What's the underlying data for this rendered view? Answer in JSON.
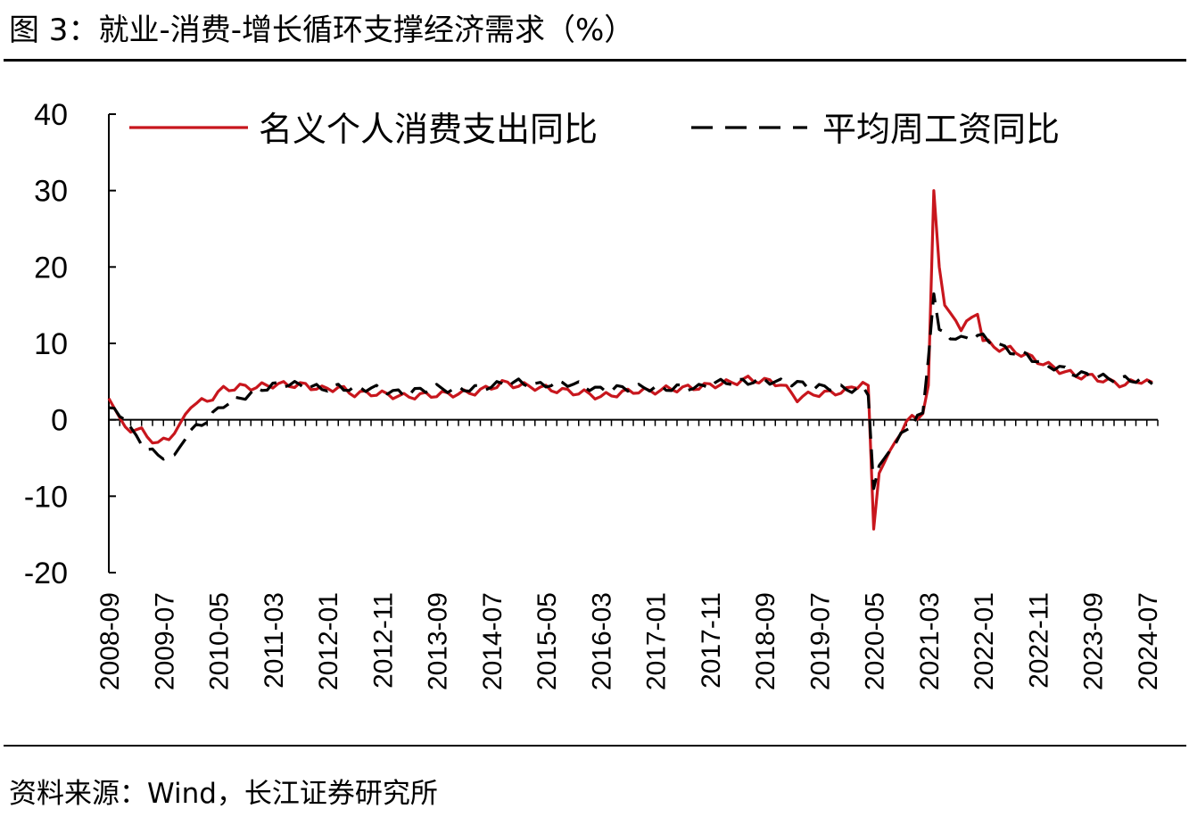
{
  "figure": {
    "title": "图 3：就业-消费-增长循环支撑经济需求（%）",
    "source": "资料来源：Wind，长江证券研究所"
  },
  "chart_data": {
    "type": "line",
    "ylim": [
      -20,
      40
    ],
    "yticks": [
      40,
      30,
      20,
      10,
      0,
      -10,
      -20
    ],
    "xlim": [
      "2008-09",
      "2024-09"
    ],
    "xticks": [
      "2008-09",
      "2009-07",
      "2010-05",
      "2011-03",
      "2012-01",
      "2012-11",
      "2013-09",
      "2014-07",
      "2015-05",
      "2016-03",
      "2017-01",
      "2017-11",
      "2018-09",
      "2019-07",
      "2020-05",
      "2021-03",
      "2022-01",
      "2022-11",
      "2023-09",
      "2024-07"
    ],
    "legend_position": "top",
    "grid": false,
    "series": [
      {
        "name": "名义个人消费支出同比",
        "color": "#c8161d",
        "style": "solid",
        "points": [
          [
            "2008-09",
            2.8
          ],
          [
            "2008-12",
            -1.0
          ],
          [
            "2009-03",
            -1.5
          ],
          [
            "2009-06",
            -3.2
          ],
          [
            "2009-09",
            -1.8
          ],
          [
            "2009-12",
            2.0
          ],
          [
            "2010-03",
            2.5
          ],
          [
            "2010-06",
            4.0
          ],
          [
            "2010-09",
            4.3
          ],
          [
            "2010-12",
            4.3
          ],
          [
            "2011-03",
            4.6
          ],
          [
            "2011-06",
            4.6
          ],
          [
            "2011-09",
            4.5
          ],
          [
            "2011-12",
            4.0
          ],
          [
            "2012-03",
            4.2
          ],
          [
            "2012-06",
            3.4
          ],
          [
            "2012-09",
            3.5
          ],
          [
            "2012-12",
            3.3
          ],
          [
            "2013-03",
            3.0
          ],
          [
            "2013-06",
            3.2
          ],
          [
            "2013-09",
            3.3
          ],
          [
            "2013-12",
            3.4
          ],
          [
            "2014-03",
            3.5
          ],
          [
            "2014-06",
            4.0
          ],
          [
            "2014-09",
            4.8
          ],
          [
            "2014-12",
            4.5
          ],
          [
            "2015-03",
            4.3
          ],
          [
            "2015-06",
            4.0
          ],
          [
            "2015-09",
            3.7
          ],
          [
            "2015-12",
            3.5
          ],
          [
            "2016-03",
            3.0
          ],
          [
            "2016-06",
            3.4
          ],
          [
            "2016-09",
            3.8
          ],
          [
            "2016-12",
            3.7
          ],
          [
            "2017-03",
            4.0
          ],
          [
            "2017-06",
            4.1
          ],
          [
            "2017-09",
            4.3
          ],
          [
            "2017-12",
            4.6
          ],
          [
            "2018-03",
            4.9
          ],
          [
            "2018-06",
            5.3
          ],
          [
            "2018-09",
            5.1
          ],
          [
            "2018-12",
            4.7
          ],
          [
            "2019-03",
            2.8
          ],
          [
            "2019-06",
            3.4
          ],
          [
            "2019-09",
            3.5
          ],
          [
            "2019-12",
            3.8
          ],
          [
            "2020-03",
            4.9
          ],
          [
            "2020-04",
            4.5
          ],
          [
            "2020-05",
            -14.3
          ],
          [
            "2020-06",
            -7.0
          ],
          [
            "2020-09",
            -2.5
          ],
          [
            "2020-12",
            0.4
          ],
          [
            "2021-01",
            0.5
          ],
          [
            "2021-02",
            0.8
          ],
          [
            "2021-03",
            4.5
          ],
          [
            "2021-04",
            30.0
          ],
          [
            "2021-05",
            20.0
          ],
          [
            "2021-06",
            15.0
          ],
          [
            "2021-09",
            12.0
          ],
          [
            "2021-12",
            13.8
          ],
          [
            "2022-01",
            10.5
          ],
          [
            "2022-03",
            9.5
          ],
          [
            "2022-06",
            9.2
          ],
          [
            "2022-09",
            8.4
          ],
          [
            "2022-12",
            7.4
          ],
          [
            "2023-03",
            6.5
          ],
          [
            "2023-06",
            5.8
          ],
          [
            "2023-09",
            5.6
          ],
          [
            "2023-12",
            5.0
          ],
          [
            "2024-03",
            4.6
          ],
          [
            "2024-06",
            5.2
          ],
          [
            "2024-08",
            4.9
          ]
        ]
      },
      {
        "name": "平均周工资同比",
        "color": "#000000",
        "style": "dashed",
        "points": [
          [
            "2008-09",
            1.6
          ],
          [
            "2008-12",
            0.0
          ],
          [
            "2009-03",
            -3.0
          ],
          [
            "2009-06",
            -4.8
          ],
          [
            "2009-09",
            -4.6
          ],
          [
            "2009-12",
            -1.5
          ],
          [
            "2010-03",
            0.0
          ],
          [
            "2010-06",
            2.0
          ],
          [
            "2010-09",
            2.8
          ],
          [
            "2010-12",
            3.8
          ],
          [
            "2011-03",
            4.5
          ],
          [
            "2011-06",
            4.7
          ],
          [
            "2011-09",
            4.4
          ],
          [
            "2011-12",
            4.1
          ],
          [
            "2012-03",
            4.3
          ],
          [
            "2012-06",
            4.0
          ],
          [
            "2012-09",
            4.2
          ],
          [
            "2012-12",
            3.8
          ],
          [
            "2013-03",
            3.4
          ],
          [
            "2013-06",
            3.9
          ],
          [
            "2013-09",
            4.2
          ],
          [
            "2013-12",
            3.9
          ],
          [
            "2014-03",
            4.1
          ],
          [
            "2014-06",
            4.3
          ],
          [
            "2014-09",
            4.7
          ],
          [
            "2014-12",
            4.9
          ],
          [
            "2015-03",
            4.5
          ],
          [
            "2015-06",
            4.7
          ],
          [
            "2015-09",
            4.8
          ],
          [
            "2015-12",
            4.4
          ],
          [
            "2016-03",
            3.9
          ],
          [
            "2016-06",
            4.1
          ],
          [
            "2016-09",
            4.2
          ],
          [
            "2016-12",
            4.2
          ],
          [
            "2017-03",
            4.1
          ],
          [
            "2017-06",
            4.3
          ],
          [
            "2017-09",
            4.2
          ],
          [
            "2017-12",
            4.8
          ],
          [
            "2018-03",
            5.0
          ],
          [
            "2018-06",
            5.0
          ],
          [
            "2018-09",
            5.2
          ],
          [
            "2018-12",
            4.9
          ],
          [
            "2019-03",
            4.8
          ],
          [
            "2019-06",
            4.2
          ],
          [
            "2019-09",
            4.3
          ],
          [
            "2019-12",
            4.0
          ],
          [
            "2020-03",
            4.0
          ],
          [
            "2020-04",
            3.2
          ],
          [
            "2020-05",
            -9.0
          ],
          [
            "2020-06",
            -6.0
          ],
          [
            "2020-09",
            -3.0
          ],
          [
            "2020-12",
            -0.5
          ],
          [
            "2021-01",
            0.5
          ],
          [
            "2021-02",
            0.9
          ],
          [
            "2021-03",
            8.0
          ],
          [
            "2021-04",
            16.5
          ],
          [
            "2021-05",
            11.5
          ],
          [
            "2021-06",
            11.2
          ],
          [
            "2021-09",
            10.5
          ],
          [
            "2021-12",
            11.0
          ],
          [
            "2022-01",
            10.8
          ],
          [
            "2022-03",
            10.0
          ],
          [
            "2022-06",
            9.0
          ],
          [
            "2022-09",
            8.5
          ],
          [
            "2022-12",
            7.2
          ],
          [
            "2023-03",
            6.8
          ],
          [
            "2023-06",
            6.0
          ],
          [
            "2023-09",
            5.8
          ],
          [
            "2023-12",
            5.4
          ],
          [
            "2024-03",
            5.3
          ],
          [
            "2024-06",
            5.2
          ],
          [
            "2024-08",
            4.7
          ]
        ]
      }
    ]
  }
}
